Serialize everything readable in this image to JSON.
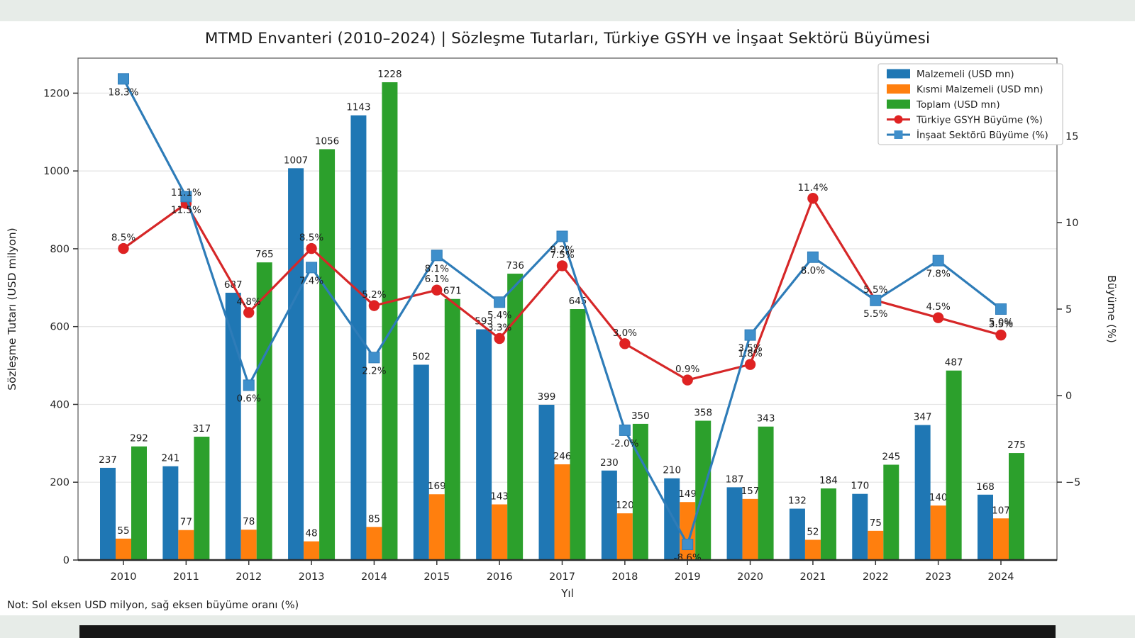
{
  "page": {
    "background_band_color": "#e7ece8",
    "dark_bar_color": "#161616"
  },
  "chart_data": {
    "type": "bar",
    "subtype": "grouped-bars-with-lines",
    "title": "MTMD Envanteri (2010–2024) | Sözleşme Tutarları, Türkiye GSYH ve İnşaat Sektörü Büyümesi",
    "footnote": "Not: Sol eksen USD milyon, sağ eksen büyüme oranı (%)",
    "xlabel": "Yıl",
    "ylabel_left": "Sözleşme Tutarı (USD milyon)",
    "ylabel_right": "Büyüme (%)",
    "categories": [
      "2010",
      "2011",
      "2012",
      "2013",
      "2014",
      "2015",
      "2016",
      "2017",
      "2018",
      "2019",
      "2020",
      "2021",
      "2022",
      "2023",
      "2024"
    ],
    "left_axis": {
      "min": 0,
      "max": 1290,
      "ticks": [
        0,
        200,
        400,
        600,
        800,
        1000,
        1200
      ]
    },
    "right_axis": {
      "min": -9.5,
      "max": 19.5,
      "ticks": [
        -5,
        0,
        5,
        10,
        15
      ]
    },
    "grid": "horizontal",
    "legend_position": "upper right",
    "bar_series": [
      {
        "name": "Malzemeli (USD mn)",
        "color": "#1f77b4",
        "values": [
          237,
          241,
          687,
          1007,
          1143,
          502,
          593,
          399,
          230,
          210,
          187,
          132,
          170,
          347,
          168
        ]
      },
      {
        "name": "Kısmi Malzemeli (USD mn)",
        "color": "#ff7f0e",
        "values": [
          55,
          77,
          78,
          48,
          85,
          169,
          143,
          246,
          120,
          149,
          157,
          52,
          75,
          140,
          107
        ]
      },
      {
        "name": "Toplam (USD mn)",
        "color": "#2ca02c",
        "values": [
          292,
          317,
          765,
          1056,
          1228,
          671,
          736,
          645,
          350,
          358,
          343,
          184,
          245,
          487,
          275
        ]
      }
    ],
    "line_series": [
      {
        "name": "Türkiye GSYH Büyüme (%)",
        "marker": "circle",
        "line_color": "#d62728",
        "marker_color": "#e02222",
        "label_position": "above",
        "values": [
          8.5,
          11.1,
          4.8,
          8.5,
          5.2,
          6.1,
          3.3,
          7.5,
          3.0,
          0.9,
          1.8,
          11.4,
          5.5,
          4.5,
          3.5
        ]
      },
      {
        "name": "İnşaat Sektörü Büyüme (%)",
        "marker": "square",
        "line_color": "#2e7cb8",
        "marker_color": "#3f8fcb",
        "label_position": "below",
        "values": [
          18.3,
          11.5,
          0.6,
          7.4,
          2.2,
          8.1,
          5.4,
          9.2,
          -2.0,
          -8.6,
          3.5,
          8.0,
          5.5,
          7.8,
          5.0
        ]
      }
    ]
  }
}
